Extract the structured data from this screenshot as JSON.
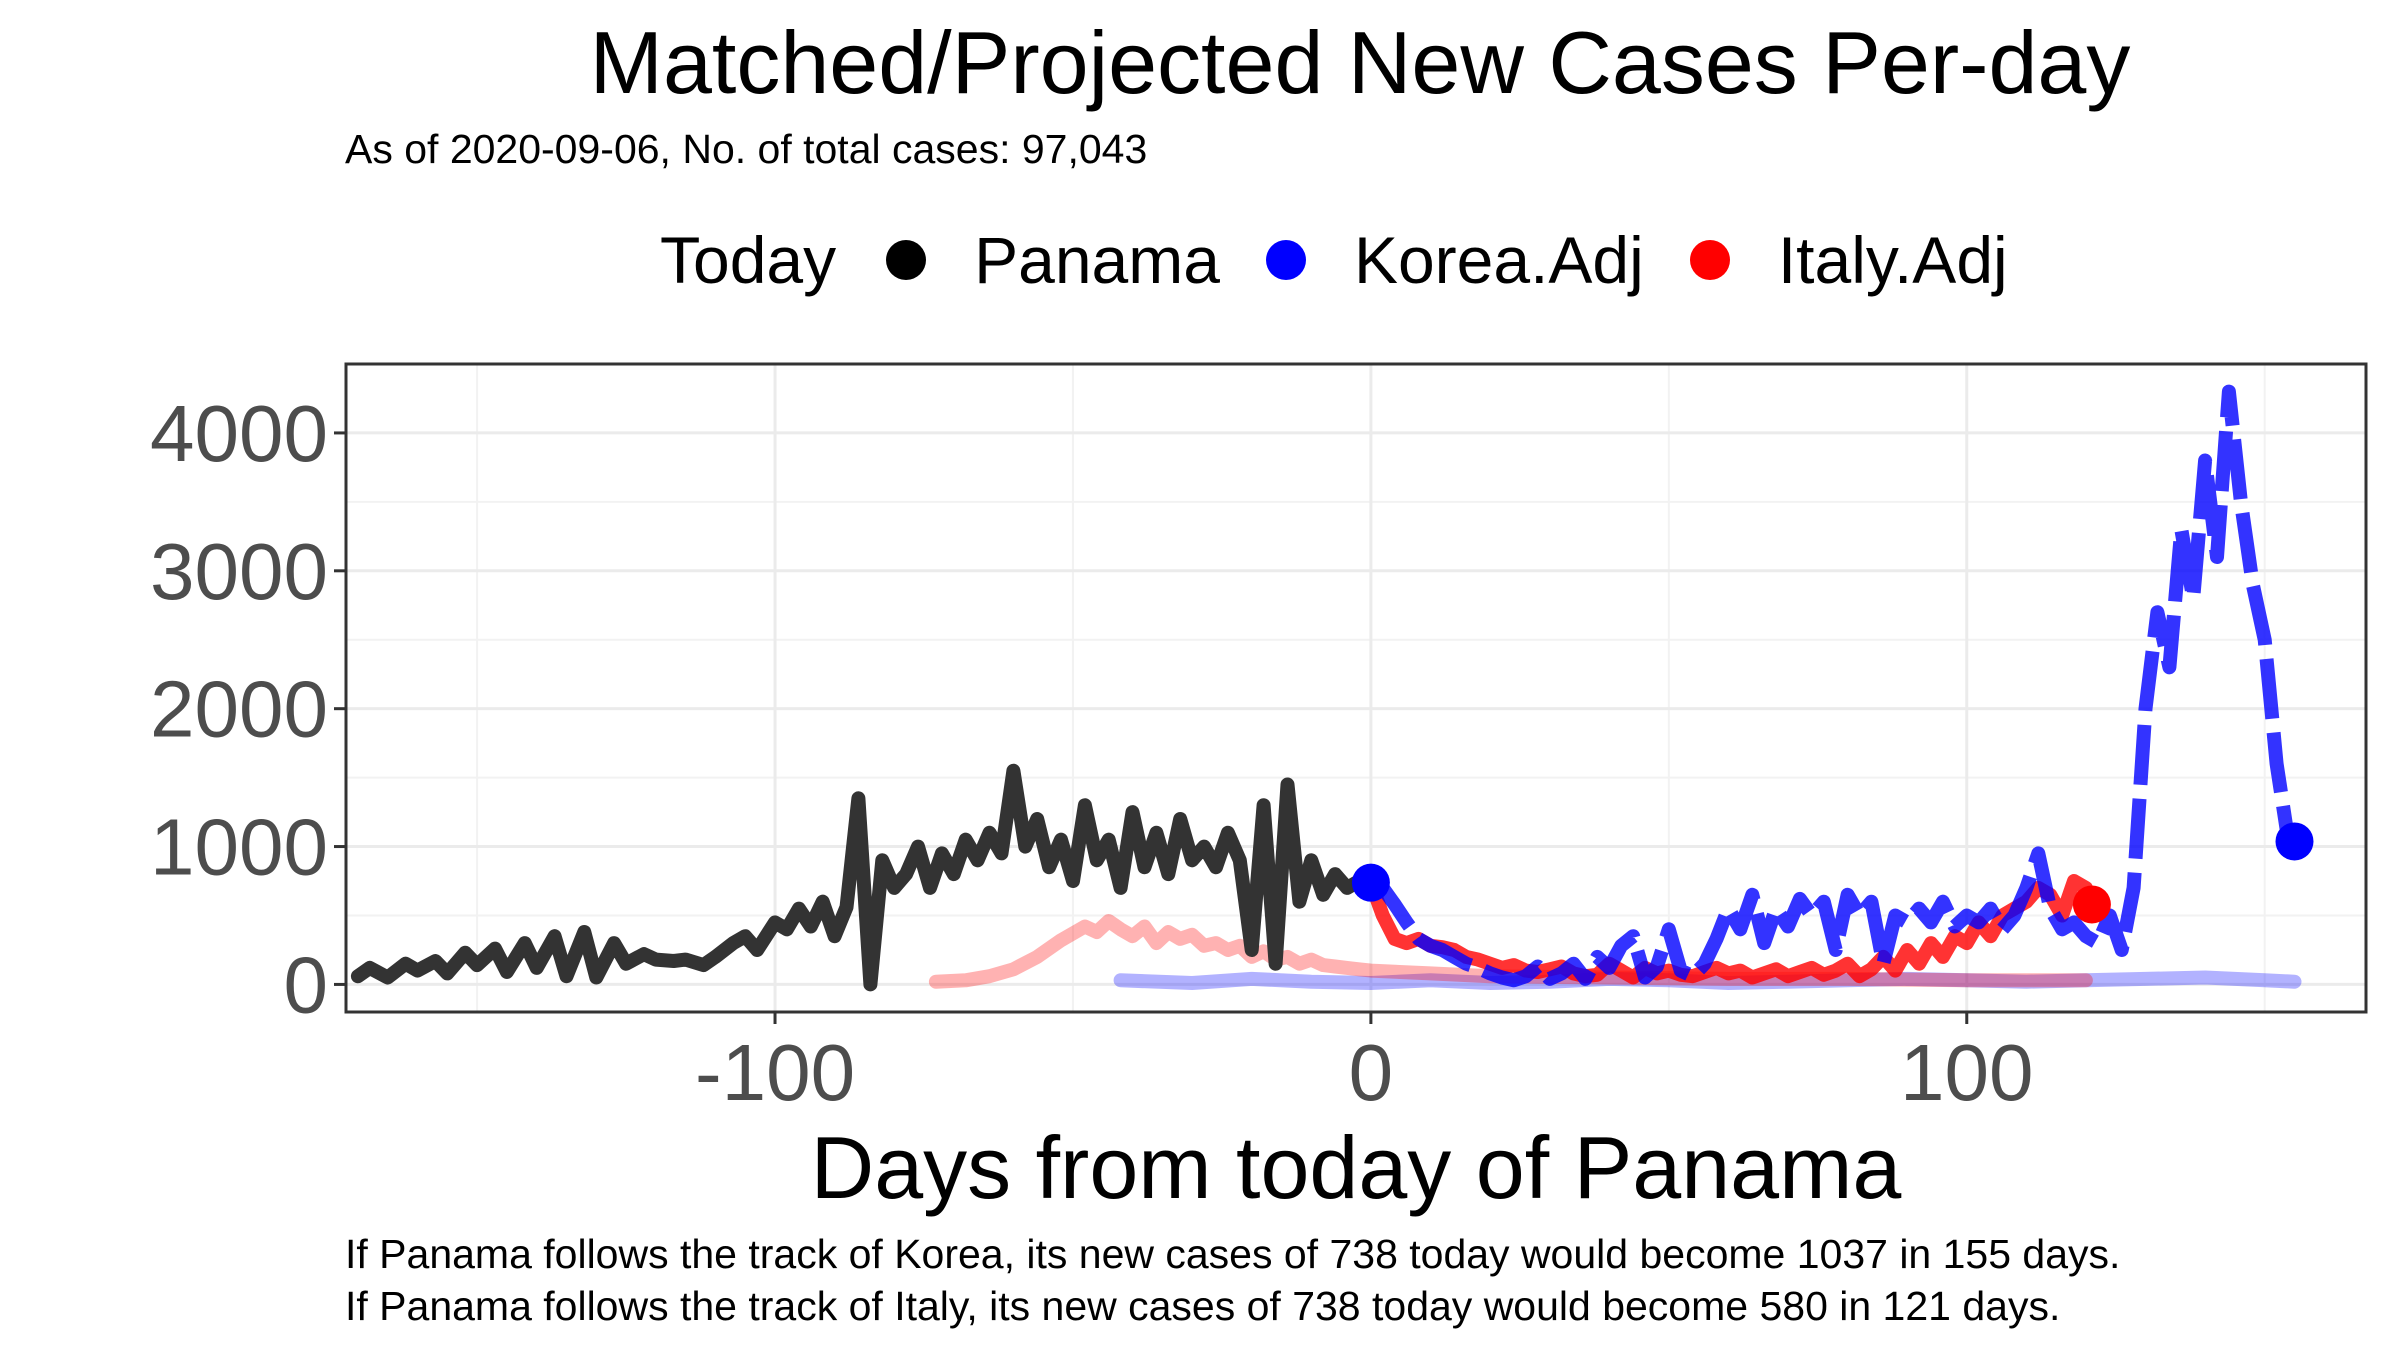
{
  "chart_data": {
    "type": "line",
    "title": "Matched/Projected New Cases Per-day",
    "subtitle": "As of 2020-09-06, No. of total cases: 97,043",
    "xlabel": "Days from today of Panama",
    "ylabel": "",
    "xlim": [
      -172,
      167
    ],
    "ylim": [
      -200,
      4500
    ],
    "x_ticks": [
      -100,
      0,
      100
    ],
    "x_tick_labels": [
      "-100",
      "0",
      "100"
    ],
    "y_ticks": [
      0,
      1000,
      2000,
      3000,
      4000
    ],
    "y_tick_labels": [
      "0",
      "1000",
      "2000",
      "3000",
      "4000"
    ],
    "grid": true,
    "legend_title": "Today",
    "legend_position": "top",
    "legend": [
      {
        "label": "Panama",
        "color": "#000000"
      },
      {
        "label": "Korea.Adj",
        "color": "#0000ff"
      },
      {
        "label": "Italy.Adj",
        "color": "#ff0000"
      }
    ],
    "series": [
      {
        "name": "Panama",
        "color": "#333333",
        "style": "solid",
        "x": [
          -170,
          -168,
          -165,
          -162,
          -160,
          -157,
          -155,
          -152,
          -150,
          -147,
          -145,
          -142,
          -140,
          -137,
          -135,
          -132,
          -130,
          -127,
          -125,
          -122,
          -120,
          -117,
          -115,
          -112,
          -110,
          -107,
          -105,
          -103,
          -100,
          -98,
          -96,
          -94,
          -92,
          -90,
          -88,
          -86,
          -84,
          -82,
          -80,
          -78,
          -76,
          -74,
          -72,
          -70,
          -68,
          -66,
          -64,
          -62,
          -60,
          -58,
          -56,
          -54,
          -52,
          -50,
          -48,
          -46,
          -44,
          -42,
          -40,
          -38,
          -36,
          -34,
          -32,
          -30,
          -28,
          -26,
          -24,
          -22,
          -20,
          -18,
          -16,
          -14,
          -12,
          -10,
          -8,
          -6,
          -4,
          -2,
          0
        ],
        "values": [
          60,
          120,
          50,
          150,
          100,
          170,
          80,
          230,
          140,
          260,
          90,
          300,
          120,
          350,
          60,
          380,
          50,
          300,
          150,
          220,
          180,
          170,
          180,
          140,
          200,
          300,
          350,
          250,
          450,
          400,
          550,
          420,
          600,
          350,
          560,
          1350,
          0,
          900,
          700,
          800,
          1000,
          700,
          950,
          800,
          1050,
          900,
          1100,
          950,
          1550,
          1000,
          1200,
          850,
          1050,
          750,
          1300,
          900,
          1050,
          700,
          1250,
          850,
          1100,
          800,
          1200,
          900,
          1000,
          850,
          1100,
          900,
          250,
          1300,
          150,
          1450,
          600,
          900,
          650,
          800,
          700,
          750,
          738
        ]
      },
      {
        "name": "Korea.Adj projection",
        "color": "#0000ff",
        "style": "dashed",
        "x": [
          0,
          2,
          4,
          6,
          8,
          10,
          12,
          14,
          16,
          18,
          20,
          22,
          24,
          26,
          28,
          30,
          32,
          34,
          36,
          38,
          40,
          42,
          44,
          46,
          48,
          50,
          52,
          54,
          56,
          58,
          60,
          62,
          64,
          66,
          68,
          70,
          72,
          74,
          76,
          78,
          80,
          82,
          84,
          86,
          88,
          90,
          92,
          94,
          96,
          98,
          100,
          102,
          104,
          106,
          108,
          110,
          112,
          114,
          116,
          118,
          120,
          122,
          124,
          126,
          128,
          130,
          132,
          134,
          136,
          138,
          140,
          142,
          144,
          146,
          148,
          150,
          152,
          154
        ],
        "values": [
          738,
          700,
          580,
          450,
          330,
          280,
          250,
          200,
          150,
          120,
          80,
          50,
          30,
          60,
          130,
          40,
          80,
          150,
          40,
          200,
          120,
          280,
          350,
          50,
          130,
          400,
          100,
          60,
          150,
          330,
          550,
          400,
          650,
          300,
          550,
          420,
          620,
          500,
          600,
          250,
          650,
          500,
          600,
          150,
          500,
          450,
          550,
          450,
          600,
          420,
          500,
          450,
          550,
          400,
          500,
          700,
          950,
          550,
          400,
          450,
          350,
          300,
          500,
          250,
          700,
          2000,
          2700,
          2300,
          3300,
          2800,
          3800,
          3100,
          4300,
          3500,
          2900,
          2500,
          1600,
          1037
        ]
      },
      {
        "name": "Korea.Adj matched",
        "color": "#0000ff",
        "style": "faded",
        "x": [
          -42,
          -30,
          -20,
          -10,
          0,
          10,
          20,
          30,
          40,
          50,
          60,
          70,
          80,
          90,
          100,
          110,
          120,
          130,
          140,
          150,
          155
        ],
        "values": [
          30,
          10,
          40,
          20,
          10,
          30,
          10,
          20,
          40,
          30,
          10,
          20,
          30,
          40,
          30,
          20,
          30,
          40,
          50,
          30,
          20
        ]
      },
      {
        "name": "Italy.Adj projection",
        "color": "#ff0000",
        "style": "solid",
        "x": [
          0,
          2,
          4,
          6,
          8,
          10,
          12,
          14,
          16,
          18,
          20,
          22,
          24,
          26,
          28,
          30,
          32,
          34,
          36,
          38,
          40,
          42,
          44,
          46,
          48,
          50,
          52,
          54,
          56,
          58,
          60,
          62,
          64,
          66,
          68,
          70,
          72,
          74,
          76,
          78,
          80,
          82,
          84,
          86,
          88,
          90,
          92,
          94,
          96,
          98,
          100,
          102,
          104,
          106,
          108,
          110,
          112,
          114,
          116,
          118,
          120,
          121
        ],
        "values": [
          738,
          500,
          330,
          300,
          330,
          280,
          270,
          250,
          200,
          180,
          150,
          120,
          140,
          100,
          90,
          110,
          130,
          80,
          60,
          70,
          150,
          100,
          50,
          120,
          80,
          100,
          70,
          60,
          90,
          120,
          80,
          100,
          50,
          80,
          110,
          60,
          90,
          120,
          70,
          100,
          150,
          60,
          110,
          200,
          100,
          250,
          150,
          300,
          200,
          350,
          300,
          450,
          350,
          500,
          550,
          600,
          700,
          650,
          500,
          750,
          700,
          580
        ]
      },
      {
        "name": "Italy.Adj matched",
        "color": "#ff0000",
        "style": "faded",
        "x": [
          -73,
          -68,
          -64,
          -60,
          -56,
          -52,
          -48,
          -46,
          -44,
          -42,
          -40,
          -38,
          -36,
          -34,
          -32,
          -30,
          -28,
          -26,
          -24,
          -22,
          -20,
          -18,
          -16,
          -14,
          -12,
          -10,
          -8,
          -6,
          -4,
          -2,
          0,
          10,
          20,
          40,
          60,
          80,
          100,
          120
        ],
        "values": [
          20,
          30,
          60,
          110,
          200,
          320,
          420,
          380,
          460,
          400,
          350,
          420,
          300,
          380,
          330,
          360,
          280,
          300,
          250,
          280,
          200,
          240,
          180,
          200,
          150,
          180,
          140,
          130,
          120,
          110,
          100,
          80,
          60,
          50,
          40,
          40,
          30,
          30
        ]
      }
    ],
    "today_points": [
      {
        "series": "Panama",
        "x": 0,
        "y": 738,
        "color": "#000000"
      },
      {
        "series": "Korea.Adj",
        "x": 0,
        "y": 738,
        "color": "#0000ff"
      },
      {
        "series": "Korea.Adj",
        "x": 155,
        "y": 1037,
        "color": "#0000ff"
      },
      {
        "series": "Italy.Adj",
        "x": 121,
        "y": 580,
        "color": "#ff0000"
      }
    ]
  },
  "captions": [
    "If Panama follows the track of Korea, its new cases of 738 today would become 1037 in 155 days.",
    "If Panama follows the track of Italy, its new cases of 738 today would become 580 in 121 days."
  ]
}
